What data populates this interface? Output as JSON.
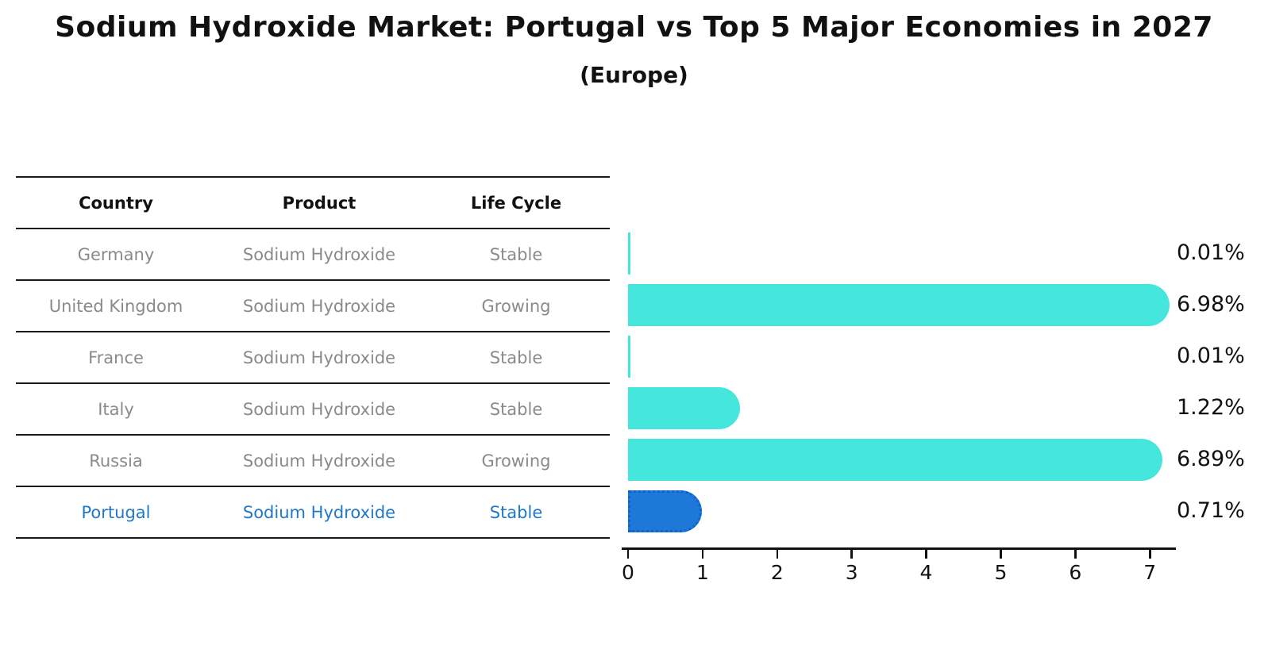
{
  "title": "Sodium Hydroxide Market: Portugal vs Top 5 Major Economies in 2027",
  "subtitle": "(Europe)",
  "table": {
    "headers": [
      "Country",
      "Product",
      "Life Cycle"
    ],
    "rows": [
      {
        "country": "Germany",
        "product": "Sodium Hydroxide",
        "life_cycle": "Stable",
        "highlight": false
      },
      {
        "country": "United Kingdom",
        "product": "Sodium Hydroxide",
        "life_cycle": "Growing",
        "highlight": false
      },
      {
        "country": "France",
        "product": "Sodium Hydroxide",
        "life_cycle": "Stable",
        "highlight": false
      },
      {
        "country": "Italy",
        "product": "Sodium Hydroxide",
        "life_cycle": "Stable",
        "highlight": false
      },
      {
        "country": "Russia",
        "product": "Sodium Hydroxide",
        "life_cycle": "Growing",
        "highlight": false
      },
      {
        "country": "Portugal",
        "product": "Sodium Hydroxide",
        "life_cycle": "Stable",
        "highlight": true
      }
    ]
  },
  "chart_data": {
    "type": "bar",
    "orientation": "horizontal",
    "title": "Sodium Hydroxide Market: Portugal vs Top 5 Major Economies in 2027",
    "subtitle": "(Europe)",
    "categories": [
      "Germany",
      "United Kingdom",
      "France",
      "Italy",
      "Russia",
      "Portugal"
    ],
    "values": [
      0.01,
      6.98,
      0.01,
      1.22,
      6.89,
      0.71
    ],
    "value_labels": [
      "0.01%",
      "6.98%",
      "0.01%",
      "1.22%",
      "6.89%",
      "0.71%"
    ],
    "xlim": [
      0,
      7.34
    ],
    "xticks": [
      0,
      1,
      2,
      3,
      4,
      5,
      6,
      7
    ],
    "xtick_labels": [
      "0",
      "1",
      "2",
      "3",
      "4",
      "5",
      "6",
      "7"
    ],
    "grid": false,
    "legend": null,
    "colors": {
      "bar_default": "#45e6dc",
      "bar_highlight": "#1e78d7",
      "bar_highlight_border": "#0e63cf",
      "highlight_text": "#1f78c8",
      "table_text": "#8a8a8a",
      "axis": "#111111"
    }
  }
}
